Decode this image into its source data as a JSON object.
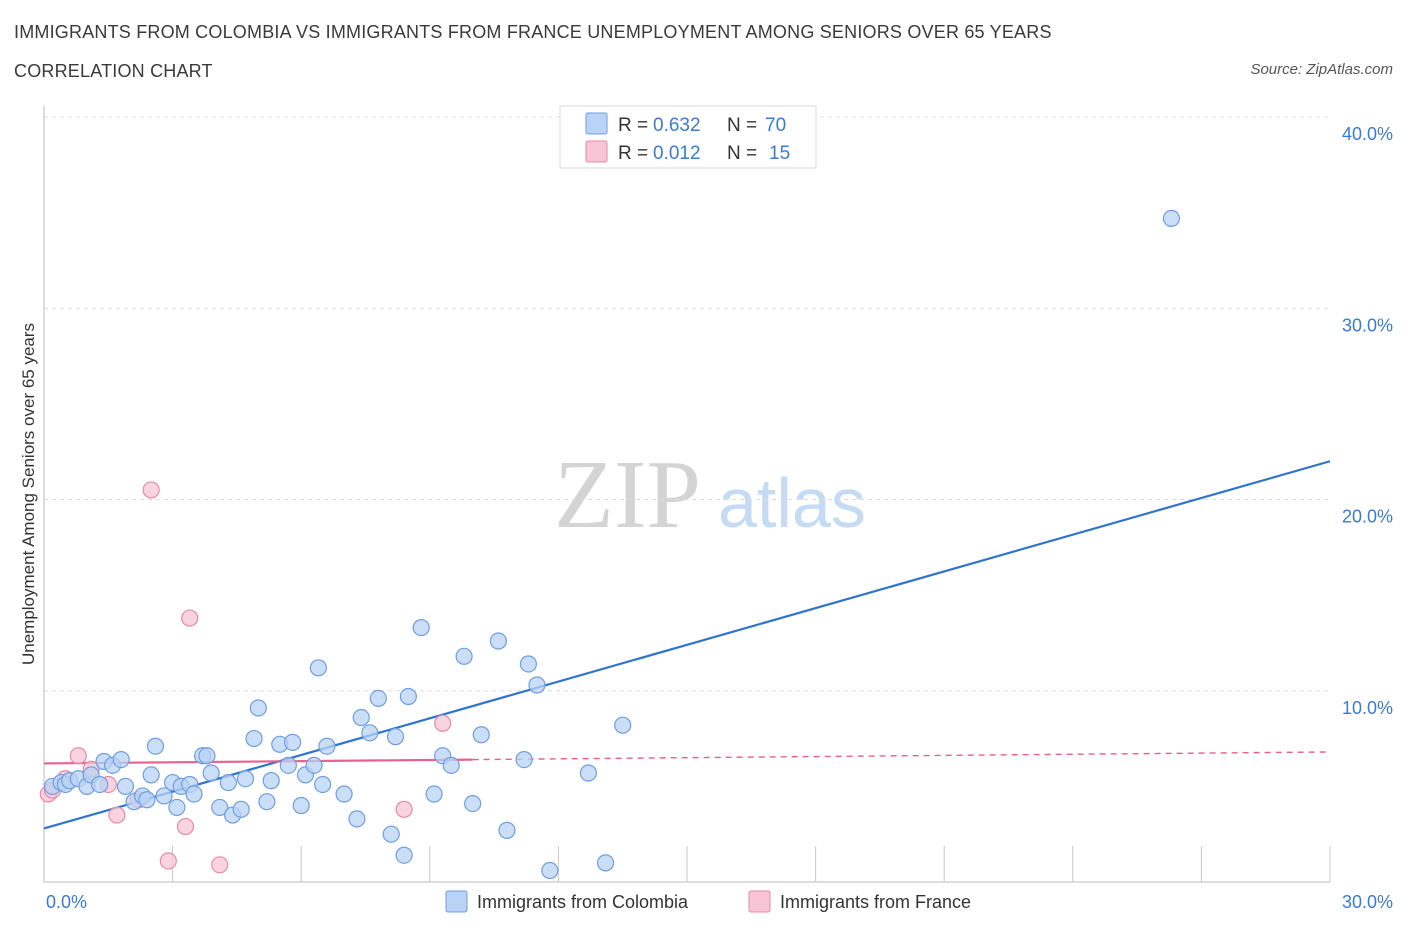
{
  "header": {
    "title": "IMMIGRANTS FROM COLOMBIA VS IMMIGRANTS FROM FRANCE UNEMPLOYMENT AMONG SENIORS OVER 65 YEARS",
    "subtitle": "CORRELATION CHART",
    "source": "Source: ZipAtlas.com"
  },
  "colors": {
    "colombia_fill": "#b8d3f5",
    "colombia_stroke": "#6f9ee0",
    "colombia_line": "#2f74d0",
    "france_fill": "#f7c5d6",
    "france_stroke": "#e68aa9",
    "france_line": "#e8608b",
    "tick_blue": "#3a7bd5"
  },
  "chart_data": {
    "type": "scatter",
    "title": "IMMIGRANTS FROM COLOMBIA VS IMMIGRANTS FROM FRANCE UNEMPLOYMENT AMONG SENIORS OVER 65 YEARS",
    "xlabel": "",
    "ylabel": "Unemployment Among Seniors over 65 years",
    "xlim": [
      0,
      30
    ],
    "ylim": [
      0,
      40
    ],
    "x_tick_labels": [
      "0.0%",
      "30.0%"
    ],
    "y_ticks": [
      10,
      20,
      30,
      40
    ],
    "y_tick_labels": [
      "10.0%",
      "20.0%",
      "30.0%",
      "40.0%"
    ],
    "watermark": {
      "zip": "ZIP",
      "atlas": "atlas"
    },
    "legend": {
      "r_label": "R =",
      "n_label": "N =",
      "entries": [
        {
          "name": "Immigrants from Colombia",
          "r": "0.632",
          "n": "70"
        },
        {
          "name": "Immigrants from France",
          "r": "0.012",
          "n": "15"
        }
      ]
    },
    "series": [
      {
        "name": "Immigrants from Colombia",
        "trend": {
          "x": [
            0,
            30
          ],
          "y": [
            2.8,
            22.0
          ],
          "dashed_from": null
        },
        "points": [
          [
            0.2,
            5.0
          ],
          [
            0.4,
            5.2
          ],
          [
            0.5,
            5.1
          ],
          [
            0.6,
            5.3
          ],
          [
            0.8,
            5.4
          ],
          [
            1.0,
            5.0
          ],
          [
            1.1,
            5.6
          ],
          [
            1.3,
            5.1
          ],
          [
            1.4,
            6.3
          ],
          [
            1.6,
            6.1
          ],
          [
            1.8,
            6.4
          ],
          [
            1.9,
            5.0
          ],
          [
            2.1,
            4.2
          ],
          [
            2.3,
            4.5
          ],
          [
            2.4,
            4.3
          ],
          [
            2.5,
            5.6
          ],
          [
            2.6,
            7.1
          ],
          [
            2.8,
            4.5
          ],
          [
            3.0,
            5.2
          ],
          [
            3.1,
            3.9
          ],
          [
            3.2,
            5.0
          ],
          [
            3.4,
            5.1
          ],
          [
            3.5,
            4.6
          ],
          [
            3.7,
            6.6
          ],
          [
            3.8,
            6.6
          ],
          [
            3.9,
            5.7
          ],
          [
            4.1,
            3.9
          ],
          [
            4.3,
            5.2
          ],
          [
            4.4,
            3.5
          ],
          [
            4.6,
            3.8
          ],
          [
            4.7,
            5.4
          ],
          [
            4.9,
            7.5
          ],
          [
            5.0,
            9.1
          ],
          [
            5.2,
            4.2
          ],
          [
            5.3,
            5.3
          ],
          [
            5.5,
            7.2
          ],
          [
            5.7,
            6.1
          ],
          [
            5.8,
            7.3
          ],
          [
            6.0,
            4.0
          ],
          [
            6.1,
            5.6
          ],
          [
            6.3,
            6.1
          ],
          [
            6.4,
            11.2
          ],
          [
            6.5,
            5.1
          ],
          [
            6.6,
            7.1
          ],
          [
            7.0,
            4.6
          ],
          [
            7.3,
            3.3
          ],
          [
            7.4,
            8.6
          ],
          [
            7.6,
            7.8
          ],
          [
            7.8,
            9.6
          ],
          [
            8.1,
            2.5
          ],
          [
            8.2,
            7.6
          ],
          [
            8.4,
            1.4
          ],
          [
            8.5,
            9.7
          ],
          [
            8.8,
            13.3
          ],
          [
            9.1,
            4.6
          ],
          [
            9.3,
            6.6
          ],
          [
            9.5,
            6.1
          ],
          [
            9.8,
            11.8
          ],
          [
            10.0,
            4.1
          ],
          [
            10.2,
            7.7
          ],
          [
            10.6,
            12.6
          ],
          [
            10.8,
            2.7
          ],
          [
            11.2,
            6.4
          ],
          [
            11.3,
            11.4
          ],
          [
            11.5,
            10.3
          ],
          [
            11.8,
            0.6
          ],
          [
            12.7,
            5.7
          ],
          [
            13.1,
            1.0
          ],
          [
            13.5,
            8.2
          ],
          [
            26.3,
            34.7
          ]
        ]
      },
      {
        "name": "Immigrants from France",
        "trend": {
          "x": [
            0,
            30
          ],
          "y": [
            6.2,
            6.8
          ],
          "solid_until": 10.0
        },
        "points": [
          [
            0.1,
            4.6
          ],
          [
            0.2,
            4.8
          ],
          [
            0.5,
            5.4
          ],
          [
            0.8,
            6.6
          ],
          [
            1.1,
            5.9
          ],
          [
            1.5,
            5.1
          ],
          [
            1.7,
            3.5
          ],
          [
            2.2,
            4.3
          ],
          [
            2.5,
            20.5
          ],
          [
            2.9,
            1.1
          ],
          [
            3.3,
            2.9
          ],
          [
            3.4,
            13.8
          ],
          [
            4.1,
            0.9
          ],
          [
            8.4,
            3.8
          ],
          [
            9.3,
            8.3
          ]
        ]
      }
    ]
  },
  "bottom_legend": {
    "colombia": "Immigrants from Colombia",
    "france": "Immigrants from France"
  }
}
